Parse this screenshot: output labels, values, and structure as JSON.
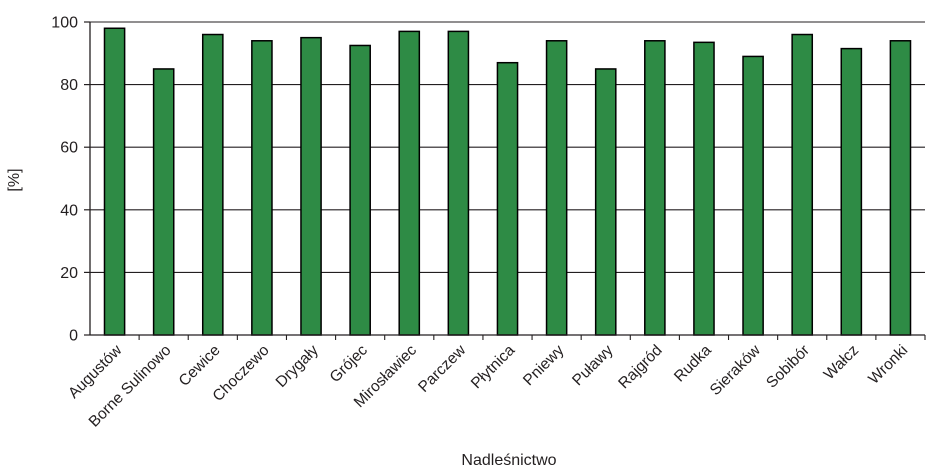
{
  "chart_data": {
    "type": "bar",
    "title": "",
    "xlabel": "Nadleśnictwo",
    "ylabel": "[%]",
    "ylim": [
      0,
      100
    ],
    "yticks": [
      0,
      20,
      40,
      60,
      80,
      100
    ],
    "grid": true,
    "legend": "none",
    "bar_color": "#2e8b45",
    "bar_edge_color": "#000000",
    "categories": [
      "Augustów",
      "Borne Sulinowo",
      "Cewice",
      "Choczewo",
      "Drygały",
      "Grójec",
      "Mirosławiec",
      "Parczew",
      "Płytnica",
      "Pniewy",
      "Puławy",
      "Rajgród",
      "Rudka",
      "Sieraków",
      "Sobibór",
      "Wałcz",
      "Wronki"
    ],
    "values": [
      98,
      85,
      96,
      94,
      95,
      92.5,
      97,
      97,
      87,
      94,
      85,
      94,
      93.5,
      89,
      96,
      91.5,
      94
    ]
  }
}
